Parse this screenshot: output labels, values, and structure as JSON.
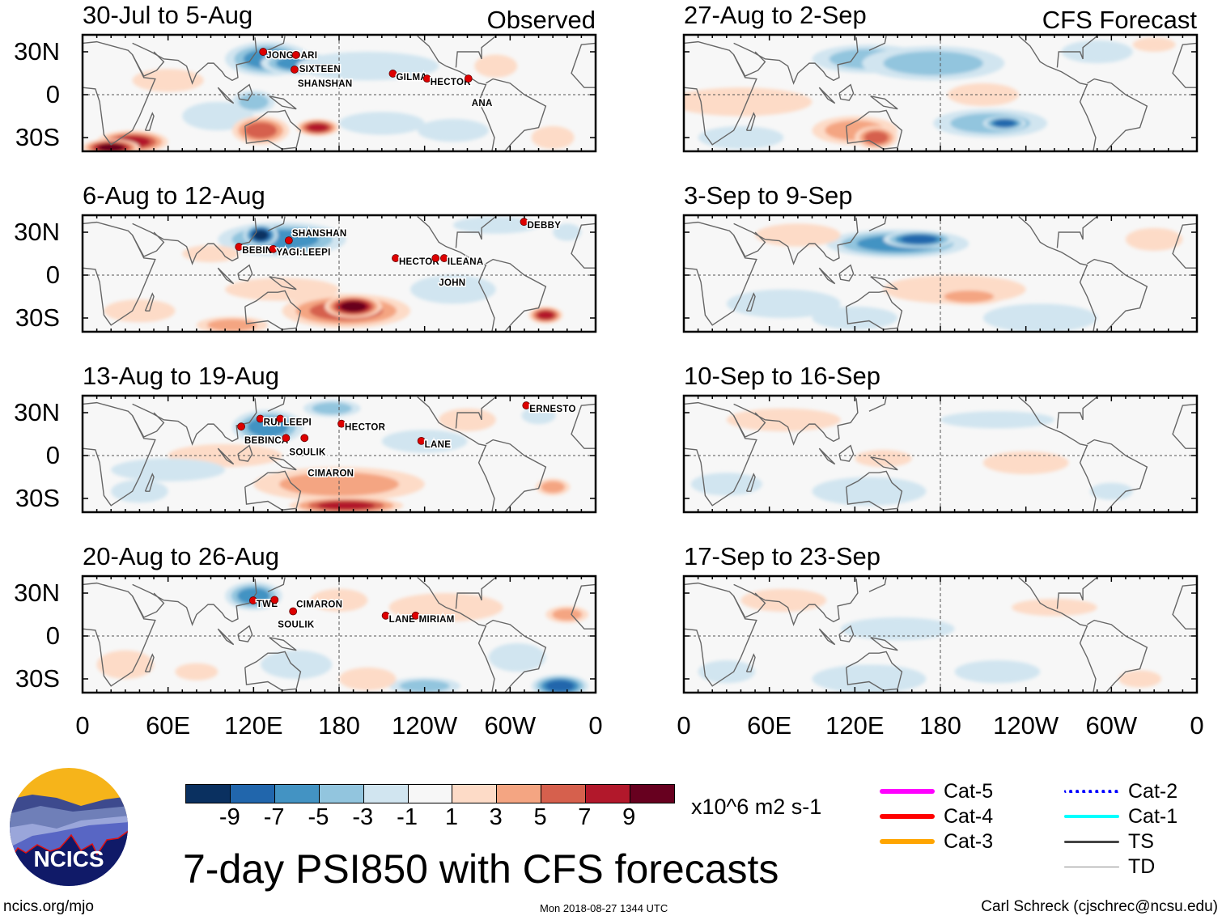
{
  "panels": {
    "observed": [
      {
        "title": "30-Jul to 5-Aug",
        "header": "Observed",
        "storms": [
          {
            "name": "JONGDARI",
            "lon": 129,
            "lat": 27.7
          },
          {
            "name": "SIXTEEN",
            "lon": 152,
            "lat": 25.5
          },
          {
            "name": "SHANSHAN",
            "lon": 151,
            "lat": 15.3
          },
          {
            "name": "GILMA",
            "lon": 220,
            "lat": 12.5
          },
          {
            "name": "HECTOR",
            "lon": 244,
            "lat": 9
          },
          {
            "name": "ANA",
            "lon": 273,
            "lat": 9
          }
        ]
      },
      {
        "title": "6-Aug to 12-Aug",
        "storms": [
          {
            "name": "BEBIN",
            "lon": 112,
            "lat": 17.5
          },
          {
            "name": "YAGI:LEEPI",
            "lon": 136,
            "lat": 16
          },
          {
            "name": "SHANSHAN",
            "lon": 147,
            "lat": 22
          },
          {
            "name": "HECTOR",
            "lon": 222,
            "lat": 9.6
          },
          {
            "name": "JOHN",
            "lon": 250,
            "lat": 9.6
          },
          {
            "name": "ILEANA",
            "lon": 256,
            "lat": 9.6
          },
          {
            "name": "DEBBY",
            "lon": 312,
            "lat": 35
          }
        ]
      },
      {
        "title": "13-Aug to 19-Aug",
        "storms": [
          {
            "name": "RUI",
            "lon": 127,
            "lat": 23.5
          },
          {
            "name": "LEEPI",
            "lon": 141,
            "lat": 23.5
          },
          {
            "name": "BEBINCA",
            "lon": 113.6,
            "lat": 18
          },
          {
            "name": "SOULIK",
            "lon": 145,
            "lat": 10
          },
          {
            "name": "CIMARON",
            "lon": 158,
            "lat": 10
          },
          {
            "name": "HECTOR",
            "lon": 184,
            "lat": 20
          },
          {
            "name": "LANE",
            "lon": 240,
            "lat": 8
          },
          {
            "name": "ERNESTO",
            "lon": 313.6,
            "lat": 32.8
          }
        ]
      },
      {
        "title": "20-Aug to 26-Aug",
        "storms": [
          {
            "name": "TWE",
            "lon": 122,
            "lat": 22.6
          },
          {
            "name": "SOULIK",
            "lon": 137,
            "lat": 23
          },
          {
            "name": "CIMARON",
            "lon": 150,
            "lat": 15
          },
          {
            "name": "LANE",
            "lon": 215,
            "lat": 12
          },
          {
            "name": "MIRIAM",
            "lon": 236,
            "lat": 12
          }
        ]
      }
    ],
    "forecast": [
      {
        "title": "27-Aug to 2-Sep",
        "header": "CFS Forecast"
      },
      {
        "title": "3-Sep to 9-Sep"
      },
      {
        "title": "10-Sep to 16-Sep"
      },
      {
        "title": "17-Sep to 23-Sep"
      }
    ]
  },
  "lat_labels": [
    "30N",
    "0",
    "30S"
  ],
  "lon_labels": [
    "0",
    "60E",
    "120E",
    "180",
    "120W",
    "60W",
    "0"
  ],
  "colorbar": {
    "ticks": [
      "-9",
      "-7",
      "-5",
      "-3",
      "-1",
      "1",
      "3",
      "5",
      "7",
      "9"
    ],
    "colors": [
      "#0a3060",
      "#2166ac",
      "#4393c3",
      "#92c5de",
      "#d1e5f0",
      "#f7f7f7",
      "#fddbc7",
      "#f4a582",
      "#d6604d",
      "#b2182b",
      "#67001f"
    ],
    "units": "x10^6 m2 s-1"
  },
  "legend": [
    {
      "label": "Cat-5",
      "color": "#ff00ff"
    },
    {
      "label": "Cat-4",
      "color": "#ff0000"
    },
    {
      "label": "Cat-3",
      "color": "#ffa500"
    },
    {
      "label": "Cat-2",
      "color": "#0000ff"
    },
    {
      "label": "Cat-1",
      "color": "#00ffff"
    },
    {
      "label": "TS",
      "color": "#444444"
    },
    {
      "label": "TD",
      "color": "#888888"
    }
  ],
  "title": "7-day PSI850 with CFS forecasts",
  "logo_text": "NCICS",
  "footer": {
    "url": "ncics.org/mjo",
    "timestamp": "Mon 2018-08-27 1344 UTC",
    "author": "Carl Schreck (cjschrec@ncsu.edu)"
  }
}
